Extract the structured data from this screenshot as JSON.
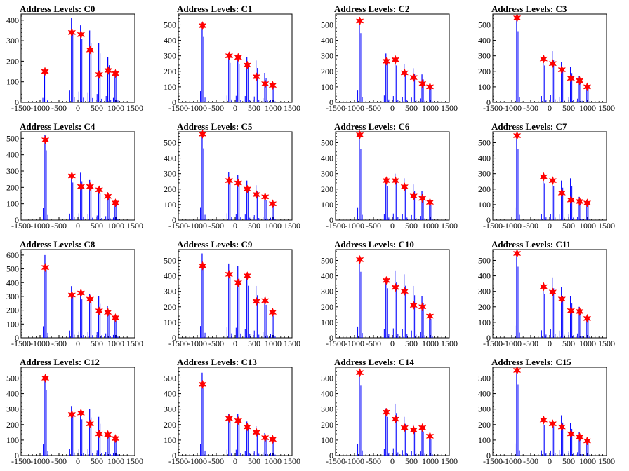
{
  "chart_data": [
    {
      "type": "histogram",
      "title": "Address Levels: C0",
      "xlim": [
        -1500,
        1500
      ],
      "ylim": [
        0,
        430
      ],
      "yticks": [
        0,
        100,
        200,
        300,
        400
      ],
      "xticks": [
        -1500,
        -1000,
        -500,
        0,
        500,
        1000,
        1500
      ],
      "peaks": [
        {
          "x": -870,
          "y": 150,
          "h": 155
        },
        {
          "x": -160,
          "y": 340,
          "h": 410
        },
        {
          "x": 80,
          "y": 330,
          "h": 375
        },
        {
          "x": 320,
          "y": 255,
          "h": 350
        },
        {
          "x": 560,
          "y": 135,
          "h": 290
        },
        {
          "x": 800,
          "y": 155,
          "h": 220
        },
        {
          "x": 990,
          "y": 140,
          "h": 155
        }
      ]
    },
    {
      "type": "histogram",
      "title": "Address Levels: C1",
      "xlim": [
        -1500,
        1500
      ],
      "ylim": [
        0,
        570
      ],
      "yticks": [
        0,
        100,
        200,
        300,
        400,
        500
      ],
      "xticks": [
        -1500,
        -1000,
        -500,
        0,
        500,
        1000,
        1500
      ],
      "peaks": [
        {
          "x": -860,
          "y": 495,
          "h": 515
        },
        {
          "x": -160,
          "y": 300,
          "h": 310
        },
        {
          "x": 80,
          "y": 290,
          "h": 300
        },
        {
          "x": 320,
          "y": 240,
          "h": 290
        },
        {
          "x": 560,
          "y": 165,
          "h": 270
        },
        {
          "x": 790,
          "y": 120,
          "h": 190
        },
        {
          "x": 990,
          "y": 110,
          "h": 120
        }
      ]
    },
    {
      "type": "histogram",
      "title": "Address Levels: C2",
      "xlim": [
        -1500,
        1500
      ],
      "ylim": [
        0,
        570
      ],
      "yticks": [
        0,
        100,
        200,
        300,
        400,
        500
      ],
      "xticks": [
        -1500,
        -1000,
        -500,
        0,
        500,
        1000,
        1500
      ],
      "peaks": [
        {
          "x": -860,
          "y": 525,
          "h": 545
        },
        {
          "x": -160,
          "y": 265,
          "h": 315
        },
        {
          "x": 80,
          "y": 275,
          "h": 290
        },
        {
          "x": 320,
          "y": 190,
          "h": 245
        },
        {
          "x": 560,
          "y": 160,
          "h": 220
        },
        {
          "x": 790,
          "y": 120,
          "h": 180
        },
        {
          "x": 990,
          "y": 100,
          "h": 110
        }
      ]
    },
    {
      "type": "histogram",
      "title": "Address Levels: C3",
      "xlim": [
        -1500,
        1500
      ],
      "ylim": [
        0,
        570
      ],
      "yticks": [
        0,
        100,
        200,
        300,
        400,
        500
      ],
      "xticks": [
        -1500,
        -1000,
        -500,
        0,
        500,
        1000,
        1500
      ],
      "peaks": [
        {
          "x": -860,
          "y": 545,
          "h": 560
        },
        {
          "x": -160,
          "y": 280,
          "h": 290
        },
        {
          "x": 80,
          "y": 250,
          "h": 330
        },
        {
          "x": 320,
          "y": 210,
          "h": 260
        },
        {
          "x": 560,
          "y": 155,
          "h": 230
        },
        {
          "x": 790,
          "y": 140,
          "h": 170
        },
        {
          "x": 990,
          "y": 100,
          "h": 110
        }
      ]
    },
    {
      "type": "histogram",
      "title": "Address Levels: C4",
      "xlim": [
        -1500,
        1500
      ],
      "ylim": [
        0,
        540
      ],
      "yticks": [
        0,
        100,
        200,
        300,
        400,
        500
      ],
      "xticks": [
        -1500,
        -1000,
        -500,
        0,
        500,
        1000,
        1500
      ],
      "peaks": [
        {
          "x": -860,
          "y": 490,
          "h": 520
        },
        {
          "x": -160,
          "y": 270,
          "h": 280
        },
        {
          "x": 80,
          "y": 205,
          "h": 290
        },
        {
          "x": 320,
          "y": 205,
          "h": 245
        },
        {
          "x": 560,
          "y": 185,
          "h": 200
        },
        {
          "x": 790,
          "y": 145,
          "h": 170
        },
        {
          "x": 990,
          "y": 105,
          "h": 110
        }
      ]
    },
    {
      "type": "histogram",
      "title": "Address Levels: C5",
      "xlim": [
        -1500,
        1500
      ],
      "ylim": [
        0,
        570
      ],
      "yticks": [
        0,
        100,
        200,
        300,
        400,
        500
      ],
      "xticks": [
        -1500,
        -1000,
        -500,
        0,
        500,
        1000,
        1500
      ],
      "peaks": [
        {
          "x": -860,
          "y": 555,
          "h": 565
        },
        {
          "x": -160,
          "y": 255,
          "h": 310
        },
        {
          "x": 80,
          "y": 240,
          "h": 290
        },
        {
          "x": 320,
          "y": 200,
          "h": 255
        },
        {
          "x": 560,
          "y": 165,
          "h": 225
        },
        {
          "x": 790,
          "y": 150,
          "h": 160
        },
        {
          "x": 990,
          "y": 105,
          "h": 110
        }
      ]
    },
    {
      "type": "histogram",
      "title": "Address Levels: C6",
      "xlim": [
        -1500,
        1500
      ],
      "ylim": [
        0,
        570
      ],
      "yticks": [
        0,
        100,
        200,
        300,
        400,
        500
      ],
      "xticks": [
        -1500,
        -1000,
        -500,
        0,
        500,
        1000,
        1500
      ],
      "peaks": [
        {
          "x": -860,
          "y": 550,
          "h": 560
        },
        {
          "x": -160,
          "y": 255,
          "h": 270
        },
        {
          "x": 80,
          "y": 255,
          "h": 300
        },
        {
          "x": 320,
          "y": 215,
          "h": 270
        },
        {
          "x": 560,
          "y": 155,
          "h": 230
        },
        {
          "x": 790,
          "y": 140,
          "h": 190
        },
        {
          "x": 990,
          "y": 115,
          "h": 120
        }
      ]
    },
    {
      "type": "histogram",
      "title": "Address Levels: C7",
      "xlim": [
        -1500,
        1500
      ],
      "ylim": [
        0,
        570
      ],
      "yticks": [
        0,
        100,
        200,
        300,
        400,
        500
      ],
      "xticks": [
        -1500,
        -1000,
        -500,
        0,
        500,
        1000,
        1500
      ],
      "peaks": [
        {
          "x": -860,
          "y": 545,
          "h": 560
        },
        {
          "x": -160,
          "y": 280,
          "h": 290
        },
        {
          "x": 80,
          "y": 255,
          "h": 270
        },
        {
          "x": 320,
          "y": 175,
          "h": 255
        },
        {
          "x": 560,
          "y": 130,
          "h": 270
        },
        {
          "x": 790,
          "y": 120,
          "h": 150
        },
        {
          "x": 990,
          "y": 110,
          "h": 120
        }
      ]
    },
    {
      "type": "histogram",
      "title": "Address Levels: C8",
      "xlim": [
        -1500,
        1500
      ],
      "ylim": [
        0,
        640
      ],
      "yticks": [
        0,
        100,
        200,
        300,
        400,
        500,
        600
      ],
      "xticks": [
        -1500,
        -1000,
        -500,
        0,
        500,
        1000,
        1500
      ],
      "peaks": [
        {
          "x": -860,
          "y": 510,
          "h": 600
        },
        {
          "x": -160,
          "y": 310,
          "h": 375
        },
        {
          "x": 80,
          "y": 325,
          "h": 340
        },
        {
          "x": 320,
          "y": 280,
          "h": 320
        },
        {
          "x": 560,
          "y": 195,
          "h": 300
        },
        {
          "x": 790,
          "y": 185,
          "h": 230
        },
        {
          "x": 990,
          "y": 145,
          "h": 150
        }
      ]
    },
    {
      "type": "histogram",
      "title": "Address Levels: C9",
      "xlim": [
        -1500,
        1500
      ],
      "ylim": [
        0,
        570
      ],
      "yticks": [
        0,
        100,
        200,
        300,
        400,
        500
      ],
      "xticks": [
        -1500,
        -1000,
        -500,
        0,
        500,
        1000,
        1500
      ],
      "peaks": [
        {
          "x": -860,
          "y": 465,
          "h": 545
        },
        {
          "x": -160,
          "y": 410,
          "h": 480
        },
        {
          "x": 80,
          "y": 355,
          "h": 465
        },
        {
          "x": 320,
          "y": 400,
          "h": 410
        },
        {
          "x": 560,
          "y": 235,
          "h": 335
        },
        {
          "x": 790,
          "y": 240,
          "h": 260
        },
        {
          "x": 990,
          "y": 165,
          "h": 175
        }
      ]
    },
    {
      "type": "histogram",
      "title": "Address Levels: C10",
      "xlim": [
        -1500,
        1500
      ],
      "ylim": [
        0,
        570
      ],
      "yticks": [
        0,
        100,
        200,
        300,
        400,
        500
      ],
      "xticks": [
        -1500,
        -1000,
        -500,
        0,
        500,
        1000,
        1500
      ],
      "peaks": [
        {
          "x": -860,
          "y": 505,
          "h": 520
        },
        {
          "x": -160,
          "y": 370,
          "h": 390
        },
        {
          "x": 80,
          "y": 325,
          "h": 435
        },
        {
          "x": 320,
          "y": 300,
          "h": 410
        },
        {
          "x": 560,
          "y": 210,
          "h": 335
        },
        {
          "x": 790,
          "y": 200,
          "h": 270
        },
        {
          "x": 990,
          "y": 140,
          "h": 150
        }
      ]
    },
    {
      "type": "histogram",
      "title": "Address Levels: C11",
      "xlim": [
        -1500,
        1500
      ],
      "ylim": [
        0,
        570
      ],
      "yticks": [
        0,
        100,
        200,
        300,
        400,
        500
      ],
      "xticks": [
        -1500,
        -1000,
        -500,
        0,
        500,
        1000,
        1500
      ],
      "peaks": [
        {
          "x": -860,
          "y": 545,
          "h": 560
        },
        {
          "x": -160,
          "y": 330,
          "h": 345
        },
        {
          "x": 80,
          "y": 295,
          "h": 390
        },
        {
          "x": 320,
          "y": 250,
          "h": 330
        },
        {
          "x": 560,
          "y": 175,
          "h": 270
        },
        {
          "x": 790,
          "y": 170,
          "h": 200
        },
        {
          "x": 990,
          "y": 125,
          "h": 140
        }
      ]
    },
    {
      "type": "histogram",
      "title": "Address Levels: C12",
      "xlim": [
        -1500,
        1500
      ],
      "ylim": [
        0,
        570
      ],
      "yticks": [
        0,
        100,
        200,
        300,
        400,
        500
      ],
      "xticks": [
        -1500,
        -1000,
        -500,
        0,
        500,
        1000,
        1500
      ],
      "peaks": [
        {
          "x": -860,
          "y": 500,
          "h": 515
        },
        {
          "x": -160,
          "y": 265,
          "h": 320
        },
        {
          "x": 80,
          "y": 275,
          "h": 285
        },
        {
          "x": 320,
          "y": 205,
          "h": 300
        },
        {
          "x": 560,
          "y": 140,
          "h": 250
        },
        {
          "x": 790,
          "y": 135,
          "h": 160
        },
        {
          "x": 990,
          "y": 110,
          "h": 120
        }
      ]
    },
    {
      "type": "histogram",
      "title": "Address Levels: C13",
      "xlim": [
        -1500,
        1500
      ],
      "ylim": [
        0,
        570
      ],
      "yticks": [
        0,
        100,
        200,
        300,
        400,
        500
      ],
      "xticks": [
        -1500,
        -1000,
        -500,
        0,
        500,
        1000,
        1500
      ],
      "peaks": [
        {
          "x": -860,
          "y": 460,
          "h": 535
        },
        {
          "x": -160,
          "y": 240,
          "h": 270
        },
        {
          "x": 80,
          "y": 225,
          "h": 270
        },
        {
          "x": 320,
          "y": 185,
          "h": 220
        },
        {
          "x": 560,
          "y": 150,
          "h": 190
        },
        {
          "x": 790,
          "y": 115,
          "h": 145
        },
        {
          "x": 990,
          "y": 105,
          "h": 110
        }
      ]
    },
    {
      "type": "histogram",
      "title": "Address Levels: C14",
      "xlim": [
        -1500,
        1500
      ],
      "ylim": [
        0,
        570
      ],
      "yticks": [
        0,
        100,
        200,
        300,
        400,
        500
      ],
      "xticks": [
        -1500,
        -1000,
        -500,
        0,
        500,
        1000,
        1500
      ],
      "peaks": [
        {
          "x": -860,
          "y": 535,
          "h": 550
        },
        {
          "x": -160,
          "y": 280,
          "h": 305
        },
        {
          "x": 80,
          "y": 235,
          "h": 335
        },
        {
          "x": 320,
          "y": 180,
          "h": 250
        },
        {
          "x": 560,
          "y": 165,
          "h": 200
        },
        {
          "x": 790,
          "y": 180,
          "h": 190
        },
        {
          "x": 990,
          "y": 125,
          "h": 130
        }
      ]
    },
    {
      "type": "histogram",
      "title": "Address Levels: C15",
      "xlim": [
        -1500,
        1500
      ],
      "ylim": [
        0,
        570
      ],
      "yticks": [
        0,
        100,
        200,
        300,
        400,
        500
      ],
      "xticks": [
        -1500,
        -1000,
        -500,
        0,
        500,
        1000,
        1500
      ],
      "peaks": [
        {
          "x": -860,
          "y": 550,
          "h": 560
        },
        {
          "x": -160,
          "y": 230,
          "h": 240
        },
        {
          "x": 80,
          "y": 205,
          "h": 230
        },
        {
          "x": 320,
          "y": 185,
          "h": 260
        },
        {
          "x": 560,
          "y": 140,
          "h": 210
        },
        {
          "x": 790,
          "y": 120,
          "h": 150
        },
        {
          "x": 990,
          "y": 95,
          "h": 100
        }
      ]
    }
  ],
  "colors": {
    "line": "#0000ff",
    "marker": "#ff0000",
    "axis": "#000000"
  }
}
